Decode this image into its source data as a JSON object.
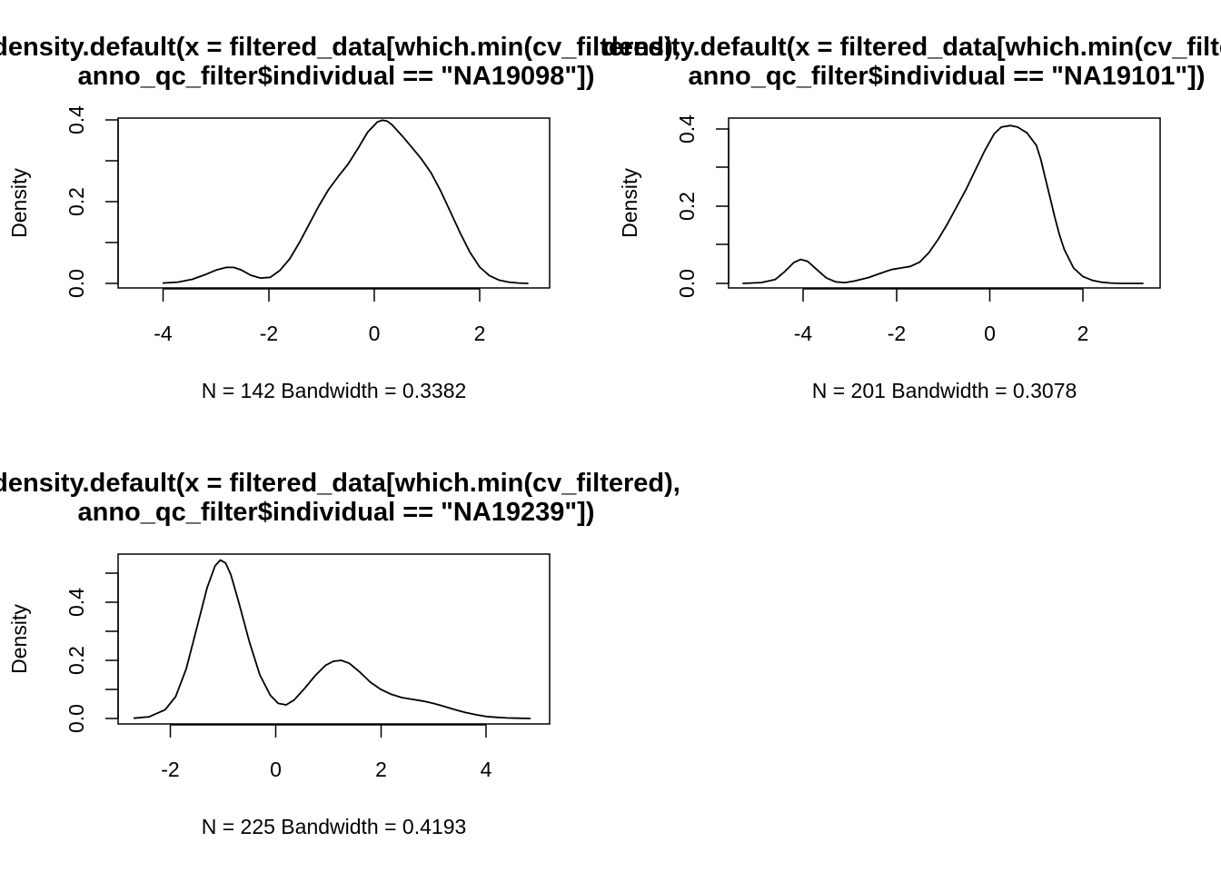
{
  "chart_data": [
    {
      "type": "line",
      "title_line1": "density.default(x = filtered_data[which.min(cv_filtered),",
      "title_line2": "anno_qc_filter$individual == \"NA19098\"])",
      "xlabel": "N = 142   Bandwidth = 0.3382",
      "ylabel": "Density",
      "xlim": [
        -4.5,
        3.0
      ],
      "ylim": [
        0.0,
        0.4
      ],
      "x_ticks": [
        "-4",
        "-2",
        "0",
        "2"
      ],
      "y_ticks": [
        "0.0",
        "0.2",
        "0.4"
      ],
      "series": [
        {
          "x": [
            -4.51,
            -4.2,
            -3.9,
            -3.6,
            -3.4,
            -3.2,
            -3.05,
            -2.9,
            -2.7,
            -2.5,
            -2.3,
            -2.1,
            -1.9,
            -1.7,
            -1.5,
            -1.3,
            -1.1,
            -0.9,
            -0.7,
            -0.5,
            -0.3,
            -0.1,
            0.0,
            0.1,
            0.2,
            0.4,
            0.6,
            0.8,
            1.0,
            1.2,
            1.4,
            1.6,
            1.8,
            2.0,
            2.2,
            2.4,
            2.6,
            2.8,
            3.0
          ],
          "y": [
            0.001,
            0.003,
            0.01,
            0.023,
            0.033,
            0.039,
            0.039,
            0.033,
            0.02,
            0.013,
            0.015,
            0.032,
            0.06,
            0.1,
            0.145,
            0.19,
            0.23,
            0.262,
            0.292,
            0.33,
            0.37,
            0.395,
            0.399,
            0.397,
            0.388,
            0.362,
            0.334,
            0.305,
            0.271,
            0.226,
            0.175,
            0.123,
            0.076,
            0.04,
            0.019,
            0.008,
            0.003,
            0.001,
            0.0
          ]
        }
      ]
    },
    {
      "type": "line",
      "title_line1": "density.default(x = filtered_data[which.min(cv_filtered),",
      "title_line2": "anno_qc_filter$individual == \"NA19101\"])",
      "xlabel": "N = 201   Bandwidth = 0.3078",
      "ylabel": "Density",
      "xlim": [
        -5.3,
        3.4
      ],
      "ylim": [
        0.0,
        0.4
      ],
      "x_ticks": [
        "-4",
        "-2",
        "0",
        "2"
      ],
      "y_ticks": [
        "0.0",
        "0.2",
        "0.4"
      ],
      "series": [
        {
          "x": [
            -5.3,
            -4.9,
            -4.6,
            -4.4,
            -4.2,
            -4.05,
            -3.9,
            -3.7,
            -3.5,
            -3.3,
            -3.1,
            -2.9,
            -2.6,
            -2.3,
            -2.1,
            -1.9,
            -1.7,
            -1.5,
            -1.3,
            -1.1,
            -0.9,
            -0.7,
            -0.5,
            -0.3,
            -0.1,
            0.1,
            0.25,
            0.45,
            0.6,
            0.8,
            1.0,
            1.1,
            1.2,
            1.3,
            1.4,
            1.5,
            1.6,
            1.8,
            2.0,
            2.2,
            2.4,
            2.6,
            2.8,
            3.0,
            3.3
          ],
          "y": [
            0.0,
            0.002,
            0.01,
            0.03,
            0.054,
            0.062,
            0.057,
            0.035,
            0.014,
            0.004,
            0.002,
            0.006,
            0.015,
            0.028,
            0.036,
            0.04,
            0.044,
            0.055,
            0.08,
            0.115,
            0.155,
            0.2,
            0.245,
            0.295,
            0.345,
            0.388,
            0.405,
            0.409,
            0.405,
            0.39,
            0.358,
            0.32,
            0.27,
            0.22,
            0.17,
            0.125,
            0.088,
            0.04,
            0.018,
            0.008,
            0.003,
            0.001,
            0.0,
            0.0,
            0.0
          ]
        }
      ]
    },
    {
      "type": "line",
      "title_line1": "density.default(x = filtered_data[which.min(cv_filtered),",
      "title_line2": "anno_qc_filter$individual == \"NA19239\"])",
      "xlabel": "N = 225   Bandwidth = 0.4193",
      "ylabel": "Density",
      "xlim": [
        -2.75,
        4.9
      ],
      "ylim": [
        0.0,
        0.55
      ],
      "x_ticks": [
        "-2",
        "0",
        "2",
        "4"
      ],
      "y_ticks": [
        "0.0",
        "0.2",
        "0.4"
      ],
      "series": [
        {
          "x": [
            -2.7,
            -2.4,
            -2.1,
            -1.9,
            -1.7,
            -1.5,
            -1.3,
            -1.15,
            -1.05,
            -0.95,
            -0.85,
            -0.7,
            -0.5,
            -0.3,
            -0.1,
            0.05,
            0.2,
            0.35,
            0.55,
            0.75,
            0.95,
            1.1,
            1.25,
            1.4,
            1.6,
            1.8,
            2.0,
            2.2,
            2.4,
            2.6,
            2.8,
            3.0,
            3.2,
            3.4,
            3.6,
            3.8,
            4.0,
            4.2,
            4.4,
            4.6,
            4.85
          ],
          "y": [
            0.001,
            0.006,
            0.03,
            0.075,
            0.17,
            0.31,
            0.45,
            0.525,
            0.545,
            0.535,
            0.495,
            0.4,
            0.265,
            0.15,
            0.08,
            0.052,
            0.047,
            0.063,
            0.103,
            0.147,
            0.183,
            0.197,
            0.2,
            0.19,
            0.16,
            0.125,
            0.1,
            0.083,
            0.072,
            0.066,
            0.06,
            0.052,
            0.042,
            0.031,
            0.021,
            0.013,
            0.007,
            0.004,
            0.002,
            0.001,
            0.0
          ]
        }
      ]
    }
  ]
}
